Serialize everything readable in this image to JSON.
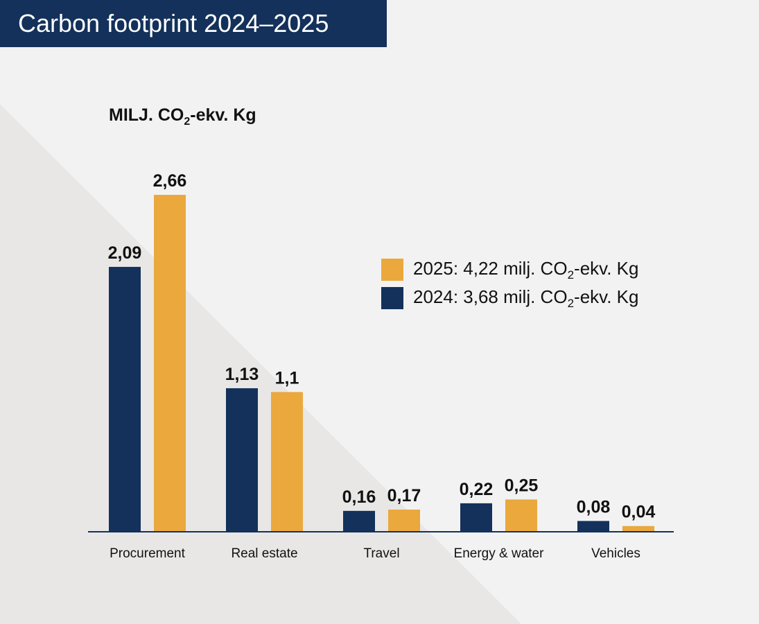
{
  "title": "Carbon footprint 2024–2025",
  "unit_label": {
    "prefix": "MILJ. CO",
    "subscript": "2",
    "suffix": "-ekv. Kg"
  },
  "colors": {
    "series_2024": "#13315a",
    "series_2025": "#eaa83d",
    "title_bg": "#13315a"
  },
  "legend": [
    {
      "prefix": "2025: 4,22 milj. CO",
      "subscript": "2",
      "suffix": "-ekv. Kg"
    },
    {
      "prefix": "2024: 3,68 milj. CO",
      "subscript": "2",
      "suffix": "-ekv. Kg"
    }
  ],
  "chart_data": {
    "type": "bar",
    "categories": [
      "Procurement",
      "Real estate",
      "Travel",
      "Energy & water",
      "Vehicles"
    ],
    "series": [
      {
        "name": "2024",
        "values": [
          2.09,
          1.13,
          0.16,
          0.22,
          0.08
        ],
        "labels": [
          "2,09",
          "1,13",
          "0,16",
          "0,22",
          "0,08"
        ]
      },
      {
        "name": "2025",
        "values": [
          2.66,
          1.1,
          0.17,
          0.25,
          0.04
        ],
        "labels": [
          "2,66",
          "1,1",
          "0,17",
          "0,25",
          "0,04"
        ]
      }
    ],
    "title": "Carbon footprint 2024–2025",
    "xlabel": "",
    "ylabel": "MILJ. CO2-ekv. Kg",
    "ylim": [
      0,
      2.66
    ],
    "grid": false,
    "legend_position": "right"
  }
}
